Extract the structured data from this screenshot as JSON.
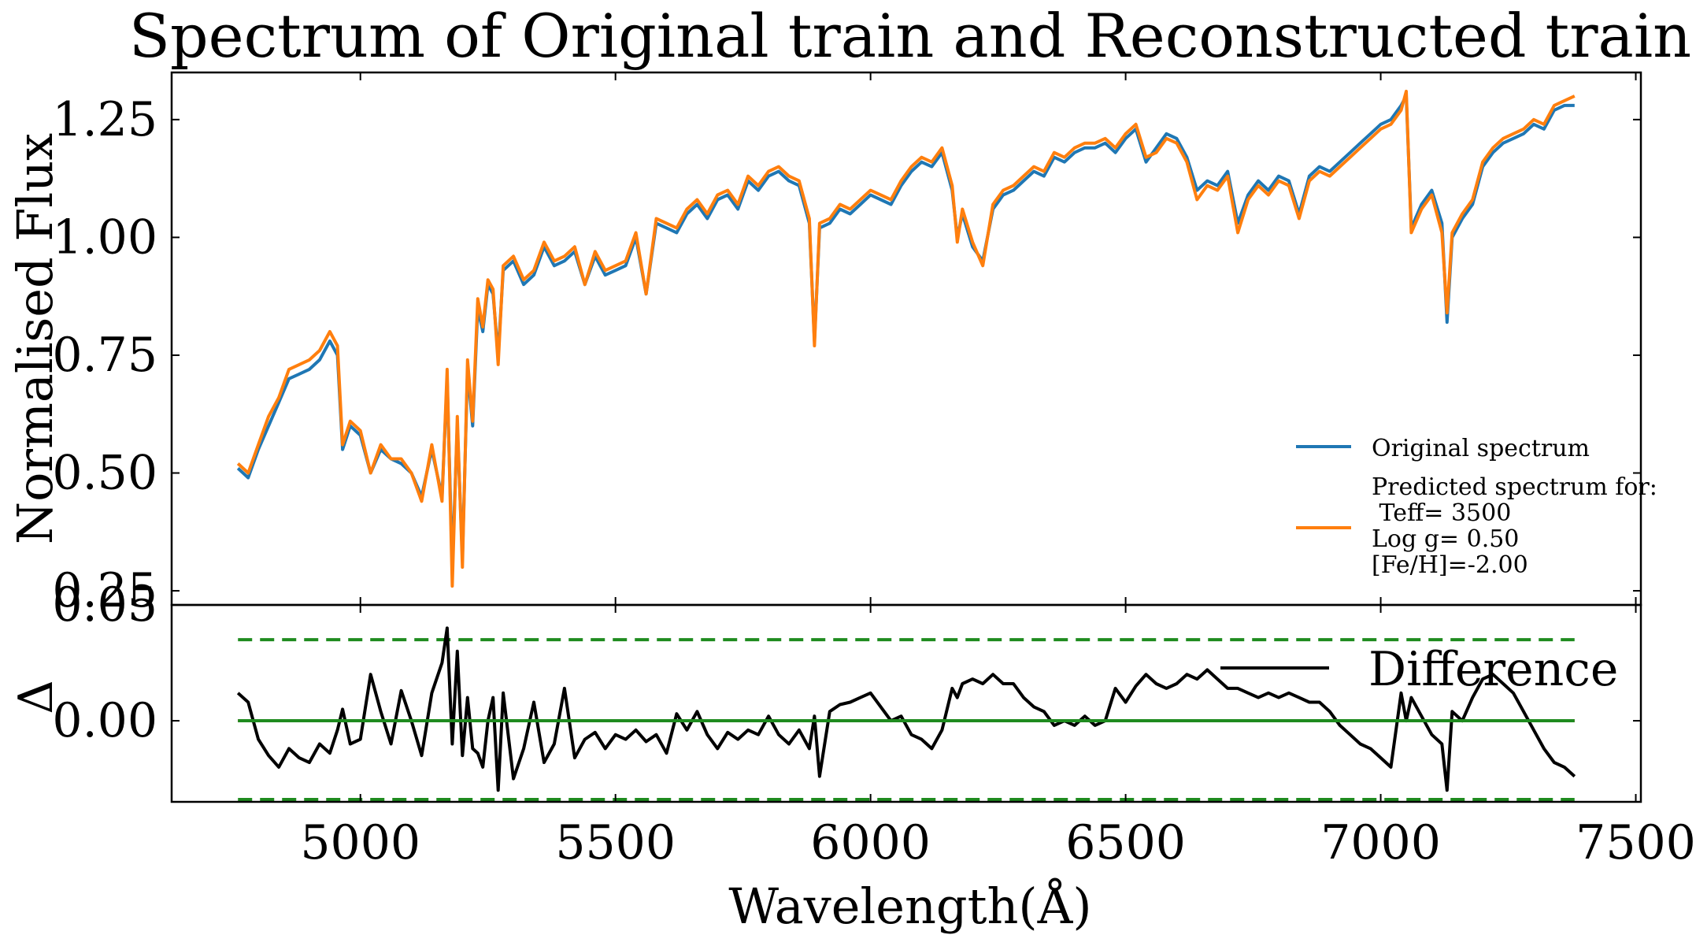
{
  "chart_data": [
    {
      "type": "line",
      "title": "Spectrum of Original train and Reconstructed train",
      "ylabel": "Normalised Flux",
      "xlim": [
        4630,
        7510
      ],
      "ylim": [
        0.22,
        1.35
      ],
      "yticks": [
        0.25,
        0.5,
        0.75,
        1.0,
        1.25
      ],
      "ytick_labels": [
        "0.25",
        "0.50",
        "0.75",
        "1.00",
        "1.25"
      ],
      "legend_position": "lower-right",
      "series": [
        {
          "name": "Original spectrum",
          "color": "#1f77b4",
          "x": [
            4760,
            4780,
            4800,
            4820,
            4840,
            4860,
            4880,
            4900,
            4920,
            4940,
            4955,
            4965,
            4980,
            5000,
            5020,
            5040,
            5060,
            5080,
            5100,
            5120,
            5140,
            5160,
            5170,
            5180,
            5190,
            5200,
            5210,
            5220,
            5230,
            5240,
            5250,
            5260,
            5270,
            5280,
            5300,
            5320,
            5340,
            5360,
            5380,
            5400,
            5420,
            5440,
            5460,
            5480,
            5500,
            5520,
            5540,
            5560,
            5580,
            5600,
            5620,
            5640,
            5660,
            5680,
            5700,
            5720,
            5740,
            5760,
            5780,
            5800,
            5820,
            5840,
            5860,
            5880,
            5890,
            5900,
            5920,
            5940,
            5960,
            5980,
            6000,
            6020,
            6040,
            6060,
            6080,
            6100,
            6120,
            6140,
            6160,
            6170,
            6180,
            6200,
            6220,
            6240,
            6260,
            6280,
            6300,
            6320,
            6340,
            6360,
            6380,
            6400,
            6420,
            6440,
            6460,
            6480,
            6500,
            6520,
            6540,
            6560,
            6580,
            6600,
            6620,
            6640,
            6660,
            6680,
            6700,
            6720,
            6740,
            6760,
            6780,
            6800,
            6820,
            6840,
            6860,
            6880,
            6900,
            6920,
            6940,
            6960,
            6980,
            7000,
            7020,
            7040,
            7050,
            7060,
            7080,
            7100,
            7120,
            7130,
            7140,
            7160,
            7180,
            7200,
            7220,
            7240,
            7260,
            7280,
            7300,
            7320,
            7340,
            7360,
            7380
          ],
          "y": [
            0.51,
            0.49,
            0.55,
            0.6,
            0.65,
            0.7,
            0.71,
            0.72,
            0.74,
            0.78,
            0.75,
            0.55,
            0.6,
            0.58,
            0.5,
            0.55,
            0.53,
            0.52,
            0.5,
            0.45,
            0.55,
            0.45,
            0.7,
            0.3,
            0.6,
            0.32,
            0.72,
            0.6,
            0.85,
            0.8,
            0.9,
            0.88,
            0.75,
            0.93,
            0.95,
            0.9,
            0.92,
            0.98,
            0.94,
            0.95,
            0.97,
            0.9,
            0.96,
            0.92,
            0.93,
            0.94,
            1.0,
            0.88,
            1.03,
            1.02,
            1.01,
            1.05,
            1.07,
            1.04,
            1.08,
            1.09,
            1.06,
            1.12,
            1.1,
            1.13,
            1.14,
            1.12,
            1.11,
            1.03,
            0.78,
            1.02,
            1.03,
            1.06,
            1.05,
            1.07,
            1.09,
            1.08,
            1.07,
            1.11,
            1.14,
            1.16,
            1.15,
            1.18,
            1.1,
            1.0,
            1.05,
            0.98,
            0.95,
            1.06,
            1.09,
            1.1,
            1.12,
            1.14,
            1.13,
            1.17,
            1.16,
            1.18,
            1.19,
            1.19,
            1.2,
            1.18,
            1.21,
            1.23,
            1.16,
            1.19,
            1.22,
            1.21,
            1.17,
            1.1,
            1.12,
            1.11,
            1.14,
            1.03,
            1.09,
            1.12,
            1.1,
            1.13,
            1.12,
            1.05,
            1.13,
            1.15,
            1.14,
            1.16,
            1.18,
            1.2,
            1.22,
            1.24,
            1.25,
            1.28,
            1.3,
            1.02,
            1.07,
            1.1,
            1.03,
            0.82,
            1.0,
            1.04,
            1.07,
            1.15,
            1.18,
            1.2,
            1.21,
            1.22,
            1.24,
            1.23,
            1.27,
            1.28,
            1.28
          ]
        },
        {
          "name": "Predicted spectrum for:\n Teff= 3500\nLog g= 0.50\n[Fe/H]=-2.00",
          "color": "#ff7f0e",
          "x": [
            4760,
            4780,
            4800,
            4820,
            4840,
            4860,
            4880,
            4900,
            4920,
            4940,
            4955,
            4965,
            4980,
            5000,
            5020,
            5040,
            5060,
            5080,
            5100,
            5120,
            5140,
            5160,
            5170,
            5180,
            5190,
            5200,
            5210,
            5220,
            5230,
            5240,
            5250,
            5260,
            5270,
            5280,
            5300,
            5320,
            5340,
            5360,
            5380,
            5400,
            5420,
            5440,
            5460,
            5480,
            5500,
            5520,
            5540,
            5560,
            5580,
            5600,
            5620,
            5640,
            5660,
            5680,
            5700,
            5720,
            5740,
            5760,
            5780,
            5800,
            5820,
            5840,
            5860,
            5880,
            5890,
            5900,
            5920,
            5940,
            5960,
            5980,
            6000,
            6020,
            6040,
            6060,
            6080,
            6100,
            6120,
            6140,
            6160,
            6170,
            6180,
            6200,
            6220,
            6240,
            6260,
            6280,
            6300,
            6320,
            6340,
            6360,
            6380,
            6400,
            6420,
            6440,
            6460,
            6480,
            6500,
            6520,
            6540,
            6560,
            6580,
            6600,
            6620,
            6640,
            6660,
            6680,
            6700,
            6720,
            6740,
            6760,
            6780,
            6800,
            6820,
            6840,
            6860,
            6880,
            6900,
            6920,
            6940,
            6960,
            6980,
            7000,
            7020,
            7040,
            7050,
            7060,
            7080,
            7100,
            7120,
            7130,
            7140,
            7160,
            7180,
            7200,
            7220,
            7240,
            7260,
            7280,
            7300,
            7320,
            7340,
            7360,
            7380
          ],
          "y": [
            0.52,
            0.5,
            0.56,
            0.62,
            0.66,
            0.72,
            0.73,
            0.74,
            0.76,
            0.8,
            0.77,
            0.56,
            0.61,
            0.59,
            0.5,
            0.56,
            0.53,
            0.53,
            0.5,
            0.44,
            0.56,
            0.44,
            0.72,
            0.26,
            0.62,
            0.3,
            0.74,
            0.61,
            0.87,
            0.81,
            0.91,
            0.89,
            0.73,
            0.94,
            0.96,
            0.91,
            0.93,
            0.99,
            0.95,
            0.96,
            0.98,
            0.9,
            0.97,
            0.93,
            0.94,
            0.95,
            1.01,
            0.88,
            1.04,
            1.03,
            1.02,
            1.06,
            1.08,
            1.05,
            1.09,
            1.1,
            1.07,
            1.13,
            1.11,
            1.14,
            1.15,
            1.13,
            1.12,
            1.04,
            0.77,
            1.03,
            1.04,
            1.07,
            1.06,
            1.08,
            1.1,
            1.09,
            1.08,
            1.12,
            1.15,
            1.17,
            1.16,
            1.19,
            1.11,
            0.99,
            1.06,
            0.99,
            0.94,
            1.07,
            1.1,
            1.11,
            1.13,
            1.15,
            1.14,
            1.18,
            1.17,
            1.19,
            1.2,
            1.2,
            1.21,
            1.19,
            1.22,
            1.24,
            1.17,
            1.18,
            1.21,
            1.2,
            1.16,
            1.08,
            1.11,
            1.1,
            1.13,
            1.01,
            1.08,
            1.11,
            1.09,
            1.12,
            1.11,
            1.04,
            1.12,
            1.14,
            1.13,
            1.15,
            1.17,
            1.19,
            1.21,
            1.23,
            1.24,
            1.27,
            1.31,
            1.01,
            1.06,
            1.09,
            1.01,
            0.84,
            1.01,
            1.05,
            1.08,
            1.16,
            1.19,
            1.21,
            1.22,
            1.23,
            1.25,
            1.24,
            1.28,
            1.29,
            1.3
          ]
        }
      ]
    },
    {
      "type": "line",
      "xlabel": "Wavelength(Å)",
      "ylabel": "Δ",
      "xlim": [
        4630,
        7510
      ],
      "ylim": [
        -0.035,
        0.05
      ],
      "xticks": [
        5000,
        5500,
        6000,
        6500,
        7000,
        7500
      ],
      "xtick_labels": [
        "5000",
        "5500",
        "6000",
        "6500",
        "7000",
        "7500"
      ],
      "yticks": [
        0.0,
        0.05
      ],
      "ytick_labels": [
        "0.00",
        "0.05"
      ],
      "legend_position": "upper-right",
      "series": [
        {
          "name": "Difference",
          "color": "#000000",
          "x": [
            4760,
            4780,
            4800,
            4820,
            4840,
            4860,
            4880,
            4900,
            4920,
            4940,
            4955,
            4965,
            4980,
            5000,
            5020,
            5040,
            5060,
            5080,
            5100,
            5120,
            5140,
            5160,
            5170,
            5180,
            5190,
            5200,
            5210,
            5220,
            5230,
            5240,
            5250,
            5260,
            5270,
            5280,
            5300,
            5320,
            5340,
            5360,
            5380,
            5400,
            5420,
            5440,
            5460,
            5480,
            5500,
            5520,
            5540,
            5560,
            5580,
            5600,
            5620,
            5640,
            5660,
            5680,
            5700,
            5720,
            5740,
            5760,
            5780,
            5800,
            5820,
            5840,
            5860,
            5880,
            5890,
            5900,
            5920,
            5940,
            5960,
            5980,
            6000,
            6020,
            6040,
            6060,
            6080,
            6100,
            6120,
            6140,
            6160,
            6170,
            6180,
            6200,
            6220,
            6240,
            6260,
            6280,
            6300,
            6320,
            6340,
            6360,
            6380,
            6400,
            6420,
            6440,
            6460,
            6480,
            6500,
            6520,
            6540,
            6560,
            6580,
            6600,
            6620,
            6640,
            6660,
            6680,
            6700,
            6720,
            6740,
            6760,
            6780,
            6800,
            6820,
            6840,
            6860,
            6880,
            6900,
            6920,
            6940,
            6960,
            6980,
            7000,
            7020,
            7040,
            7050,
            7060,
            7080,
            7100,
            7120,
            7130,
            7140,
            7160,
            7180,
            7200,
            7220,
            7240,
            7260,
            7280,
            7300,
            7320,
            7340,
            7360,
            7380
          ],
          "y": [
            0.012,
            0.008,
            -0.008,
            -0.015,
            -0.02,
            -0.012,
            -0.016,
            -0.018,
            -0.01,
            -0.014,
            -0.004,
            0.005,
            -0.01,
            -0.008,
            0.02,
            0.004,
            -0.01,
            0.013,
            0.0,
            -0.015,
            0.012,
            0.025,
            0.04,
            -0.01,
            0.03,
            -0.015,
            0.01,
            -0.012,
            -0.014,
            -0.02,
            0.0,
            0.01,
            -0.03,
            0.012,
            -0.025,
            -0.012,
            0.008,
            -0.018,
            -0.01,
            0.014,
            -0.016,
            -0.008,
            -0.005,
            -0.012,
            -0.006,
            -0.008,
            -0.004,
            -0.009,
            -0.006,
            -0.014,
            0.003,
            -0.004,
            0.004,
            -0.006,
            -0.012,
            -0.005,
            -0.008,
            -0.004,
            -0.006,
            0.002,
            -0.006,
            -0.01,
            -0.004,
            -0.012,
            0.002,
            -0.024,
            0.004,
            0.007,
            0.008,
            0.01,
            0.012,
            0.006,
            0.0,
            0.002,
            -0.006,
            -0.008,
            -0.012,
            -0.004,
            0.014,
            0.01,
            0.016,
            0.018,
            0.016,
            0.02,
            0.016,
            0.016,
            0.01,
            0.006,
            0.004,
            -0.002,
            0.0,
            -0.002,
            0.002,
            -0.002,
            0.0,
            0.014,
            0.008,
            0.015,
            0.02,
            0.016,
            0.014,
            0.016,
            0.02,
            0.018,
            0.022,
            0.018,
            0.014,
            0.014,
            0.012,
            0.01,
            0.012,
            0.01,
            0.012,
            0.01,
            0.008,
            0.008,
            0.004,
            -0.002,
            -0.006,
            -0.01,
            -0.012,
            -0.016,
            -0.02,
            0.012,
            0.0,
            0.01,
            0.002,
            -0.006,
            -0.01,
            -0.03,
            0.004,
            0.0,
            0.01,
            0.018,
            0.02,
            0.016,
            0.012,
            0.004,
            -0.004,
            -0.012,
            -0.018,
            -0.02,
            -0.024
          ]
        }
      ],
      "reference_lines": [
        {
          "y": 0.0,
          "color": "#1f8b1f",
          "style": "solid"
        },
        {
          "y": 0.0,
          "color": "#d62728",
          "style": "dashed"
        },
        {
          "y": 0.035,
          "color": "#1f8b1f",
          "style": "dashed"
        },
        {
          "y": -0.034,
          "color": "#1f8b1f",
          "style": "dashed"
        }
      ]
    }
  ]
}
